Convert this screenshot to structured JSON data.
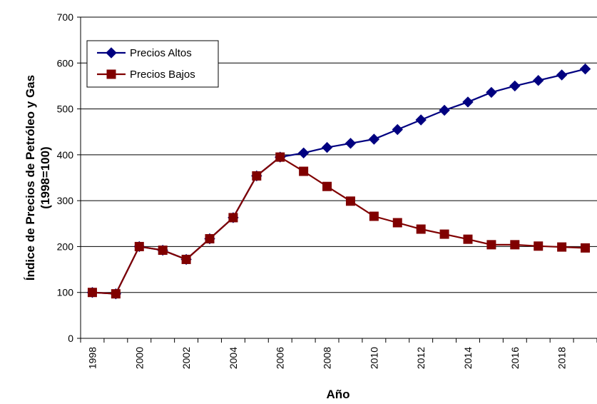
{
  "chart_data": {
    "type": "line",
    "xlabel": "Año",
    "ylabel_line1": "Índice de Precios de Petróleo y Gas",
    "ylabel_line2": "(1998=100)",
    "ylim": [
      0,
      700
    ],
    "yticks": [
      0,
      100,
      200,
      300,
      400,
      500,
      600,
      700
    ],
    "xrange": [
      1998,
      2019
    ],
    "xtick_labels": [
      "1998",
      "2000",
      "2002",
      "2004",
      "2006",
      "2008",
      "2010",
      "2012",
      "2014",
      "2016",
      "2018"
    ],
    "grid": "horizontal",
    "legend_position": "top-left",
    "x": [
      1998,
      1999,
      2000,
      2001,
      2002,
      2003,
      2004,
      2005,
      2006,
      2007,
      2008,
      2009,
      2010,
      2011,
      2012,
      2013,
      2014,
      2015,
      2016,
      2017,
      2018,
      2019
    ],
    "series": [
      {
        "name": "Precios Altos",
        "color": "#000080",
        "marker": "diamond",
        "values": [
          100,
          97,
          200,
          192,
          172,
          217,
          263,
          354,
          395,
          404,
          416,
          425,
          434,
          455,
          476,
          497,
          515,
          536,
          550,
          562,
          574,
          587
        ]
      },
      {
        "name": "Precios Bajos",
        "color": "#800000",
        "marker": "square",
        "values": [
          100,
          97,
          200,
          192,
          172,
          217,
          263,
          354,
          395,
          364,
          331,
          299,
          266,
          252,
          238,
          227,
          216,
          204,
          204,
          201,
          199,
          197
        ]
      }
    ]
  }
}
